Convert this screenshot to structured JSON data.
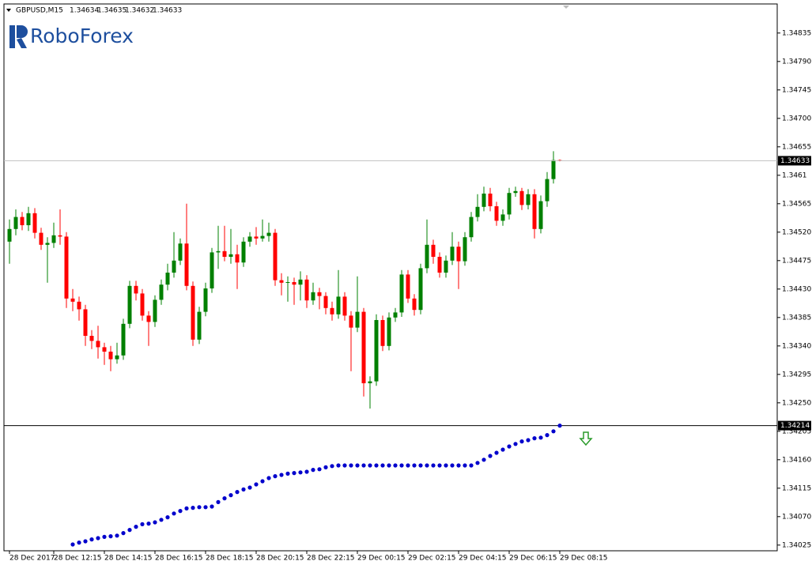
{
  "chart_data": {
    "type": "candlestick",
    "symbol": "GBPUSD,M15",
    "watermark": "RoboForex",
    "up_color": "#008000",
    "down_color": "#ff0000",
    "categories": [
      "28 Dec 2017",
      null,
      null,
      null,
      null,
      null,
      null,
      "28 Dec 12:15",
      null,
      null,
      null,
      null,
      null,
      null,
      null,
      "28 Dec 14:15",
      null,
      null,
      null,
      null,
      null,
      null,
      null,
      "28 Dec 16:15",
      null,
      null,
      null,
      null,
      null,
      null,
      null,
      "28 Dec 18:15",
      null,
      null,
      null,
      null,
      null,
      null,
      null,
      "28 Dec 20:15",
      null,
      null,
      null,
      null,
      null,
      null,
      null,
      "28 Dec 22:15",
      null,
      null,
      null,
      null,
      null,
      null,
      null,
      "29 Dec 00:15",
      null,
      null,
      null,
      null,
      null,
      null,
      null,
      "29 Dec 02:15",
      null,
      null,
      null,
      null,
      null,
      null,
      null,
      "29 Dec 04:15",
      null,
      null,
      null,
      null,
      null,
      null,
      null,
      "29 Dec 06:15",
      null,
      null,
      null,
      null,
      null,
      null,
      null,
      "29 Dec 08:15"
    ],
    "open": [
      1.34505,
      1.34525,
      1.34544,
      1.34531,
      1.3455,
      1.34519,
      1.345,
      1.34503,
      1.34515,
      1.34513,
      1.34415,
      1.3441,
      1.34398,
      1.34356,
      1.34348,
      1.34338,
      1.34331,
      1.34319,
      1.34325,
      1.34375,
      1.34435,
      1.34423,
      1.34388,
      1.34378,
      1.34413,
      1.34437,
      1.34456,
      1.34475,
      1.34502,
      1.34435,
      1.3435,
      1.34394,
      1.34431,
      1.34488,
      1.3449,
      1.34481,
      1.34485,
      1.34472,
      1.34505,
      1.34513,
      1.3451,
      1.34514,
      1.34519,
      1.34444,
      1.3444,
      1.34441,
      1.34437,
      1.34445,
      1.34412,
      1.34425,
      1.34419,
      1.344,
      1.3439,
      1.34418,
      1.34388,
      1.34369,
      1.34394,
      1.34281,
      1.34284,
      1.34381,
      1.3434,
      1.34385,
      1.34393,
      1.34453,
      1.34415,
      1.34397,
      1.34463,
      1.345,
      1.34481,
      1.34456,
      1.34475,
      1.34497,
      1.34474,
      1.34512,
      1.34544,
      1.3456,
      1.34581,
      1.34561,
      1.34538,
      1.34548,
      1.34582,
      1.34585,
      1.34563,
      1.3458,
      1.34525,
      1.34569,
      1.34604,
      1.34634
    ],
    "high": [
      1.3454,
      1.34556,
      1.34552,
      1.3456,
      1.34558,
      1.34527,
      1.34512,
      1.34535,
      1.34556,
      1.3452,
      1.3443,
      1.34418,
      1.34405,
      1.34365,
      1.34372,
      1.34345,
      1.3434,
      1.34345,
      1.34383,
      1.34443,
      1.34443,
      1.3443,
      1.34395,
      1.3442,
      1.34445,
      1.3447,
      1.3452,
      1.3451,
      1.34565,
      1.34442,
      1.34402,
      1.3444,
      1.34495,
      1.3453,
      1.3453,
      1.34525,
      1.345,
      1.34512,
      1.3452,
      1.34528,
      1.3454,
      1.34535,
      1.34525,
      1.34455,
      1.3445,
      1.34448,
      1.34458,
      1.34452,
      1.3444,
      1.34432,
      1.34425,
      1.3441,
      1.3446,
      1.34425,
      1.34395,
      1.3445,
      1.344,
      1.34292,
      1.3439,
      1.34388,
      1.34393,
      1.344,
      1.3446,
      1.3446,
      1.34422,
      1.3447,
      1.3454,
      1.34508,
      1.34488,
      1.34483,
      1.3452,
      1.34505,
      1.3452,
      1.34552,
      1.3458,
      1.34592,
      1.3459,
      1.34568,
      1.34556,
      1.3459,
      1.34592,
      1.3459,
      1.34588,
      1.34588,
      1.34578,
      1.34615,
      1.34648,
      1.34635
    ],
    "low": [
      1.3447,
      1.34515,
      1.34523,
      1.34522,
      1.3451,
      1.34492,
      1.3444,
      1.34495,
      1.345,
      1.344,
      1.34395,
      1.3438,
      1.3434,
      1.34335,
      1.3432,
      1.3431,
      1.343,
      1.34312,
      1.34318,
      1.34368,
      1.34412,
      1.3438,
      1.3434,
      1.3437,
      1.34405,
      1.34428,
      1.34448,
      1.34468,
      1.34428,
      1.3434,
      1.34343,
      1.34387,
      1.34424,
      1.34462,
      1.34474,
      1.3447,
      1.3443,
      1.34465,
      1.34497,
      1.345,
      1.34505,
      1.34505,
      1.34435,
      1.3442,
      1.3441,
      1.34405,
      1.34412,
      1.344,
      1.34405,
      1.34398,
      1.3439,
      1.3438,
      1.34383,
      1.3438,
      1.343,
      1.34362,
      1.3426,
      1.34241,
      1.34277,
      1.34332,
      1.34333,
      1.34378,
      1.34386,
      1.34408,
      1.34388,
      1.3439,
      1.34455,
      1.3447,
      1.34448,
      1.34448,
      1.34468,
      1.3443,
      1.34467,
      1.34505,
      1.34537,
      1.34553,
      1.34553,
      1.3453,
      1.3453,
      1.3454,
      1.34576,
      1.34555,
      1.34556,
      1.3451,
      1.34518,
      1.3456,
      1.34597,
      1.34632
    ],
    "close": [
      1.34525,
      1.34544,
      1.34531,
      1.3455,
      1.34519,
      1.345,
      1.34503,
      1.34515,
      1.34513,
      1.34415,
      1.3441,
      1.34398,
      1.34356,
      1.34348,
      1.34338,
      1.34331,
      1.34319,
      1.34325,
      1.34375,
      1.34435,
      1.34423,
      1.34388,
      1.34378,
      1.34413,
      1.34437,
      1.34456,
      1.34475,
      1.34502,
      1.34435,
      1.3435,
      1.34394,
      1.34431,
      1.34488,
      1.3449,
      1.34481,
      1.34485,
      1.34472,
      1.34505,
      1.34513,
      1.3451,
      1.34514,
      1.34519,
      1.34444,
      1.3444,
      1.34441,
      1.34437,
      1.34445,
      1.34412,
      1.34425,
      1.34419,
      1.344,
      1.3439,
      1.34418,
      1.34388,
      1.34369,
      1.34394,
      1.34281,
      1.34284,
      1.34381,
      1.3434,
      1.34385,
      1.34393,
      1.34453,
      1.34415,
      1.34397,
      1.34463,
      1.345,
      1.34481,
      1.34456,
      1.34475,
      1.34497,
      1.34474,
      1.34512,
      1.34544,
      1.3456,
      1.34581,
      1.34561,
      1.34538,
      1.34548,
      1.34582,
      1.34585,
      1.34563,
      1.3458,
      1.34525,
      1.34569,
      1.34604,
      1.34634,
      1.34633
    ],
    "indicator": {
      "color": "#0000cc",
      "values": [
        null,
        null,
        null,
        null,
        null,
        null,
        null,
        null,
        null,
        null,
        1.34026,
        1.34029,
        1.34031,
        1.34034,
        1.34036,
        1.34038,
        1.34039,
        1.3404,
        1.34044,
        1.34049,
        1.34054,
        1.34058,
        1.34059,
        1.34061,
        1.34065,
        1.34069,
        1.34075,
        1.34079,
        1.34083,
        1.34084,
        1.34085,
        1.34085,
        1.34086,
        1.34093,
        1.34099,
        1.34104,
        1.34109,
        1.34113,
        1.34116,
        1.34121,
        1.34126,
        1.34131,
        1.34134,
        1.34136,
        1.34138,
        1.34139,
        1.3414,
        1.34141,
        1.34144,
        1.34145,
        1.34148,
        1.3415,
        1.34151,
        1.34151,
        1.34151,
        1.34151,
        1.34151,
        1.34151,
        1.34151,
        1.34151,
        1.34151,
        1.34151,
        1.34151,
        1.34151,
        1.34151,
        1.34151,
        1.34151,
        1.34151,
        1.34151,
        1.34151,
        1.34151,
        1.34151,
        1.34151,
        1.34151,
        1.34155,
        1.3416,
        1.34166,
        1.34171,
        1.34176,
        1.34181,
        1.34185,
        1.34189,
        1.34191,
        1.34194,
        1.34195,
        1.34199,
        1.34205,
        1.34214
      ]
    },
    "level": 1.34214,
    "ylim": [
      1.34016,
      1.34881
    ],
    "yticks": [
      1.34835,
      {
        "value": 1.3479,
        "label": "1.34790"
      },
      1.34745,
      {
        "value": 1.347,
        "label": "1.34700"
      },
      1.34655,
      1.3461,
      1.34565,
      {
        "value": 1.3452,
        "label": "1.34520"
      },
      1.34475,
      {
        "value": 1.3443,
        "label": "1.34430"
      },
      1.34385,
      {
        "value": 1.3434,
        "label": "1.34340"
      },
      1.34295,
      {
        "value": 1.3425,
        "label": "1.34250"
      },
      1.34205,
      {
        "value": 1.3416,
        "label": "1.34160"
      },
      1.34115,
      {
        "value": 1.3407,
        "label": "1.34070"
      },
      1.34025
    ]
  }
}
